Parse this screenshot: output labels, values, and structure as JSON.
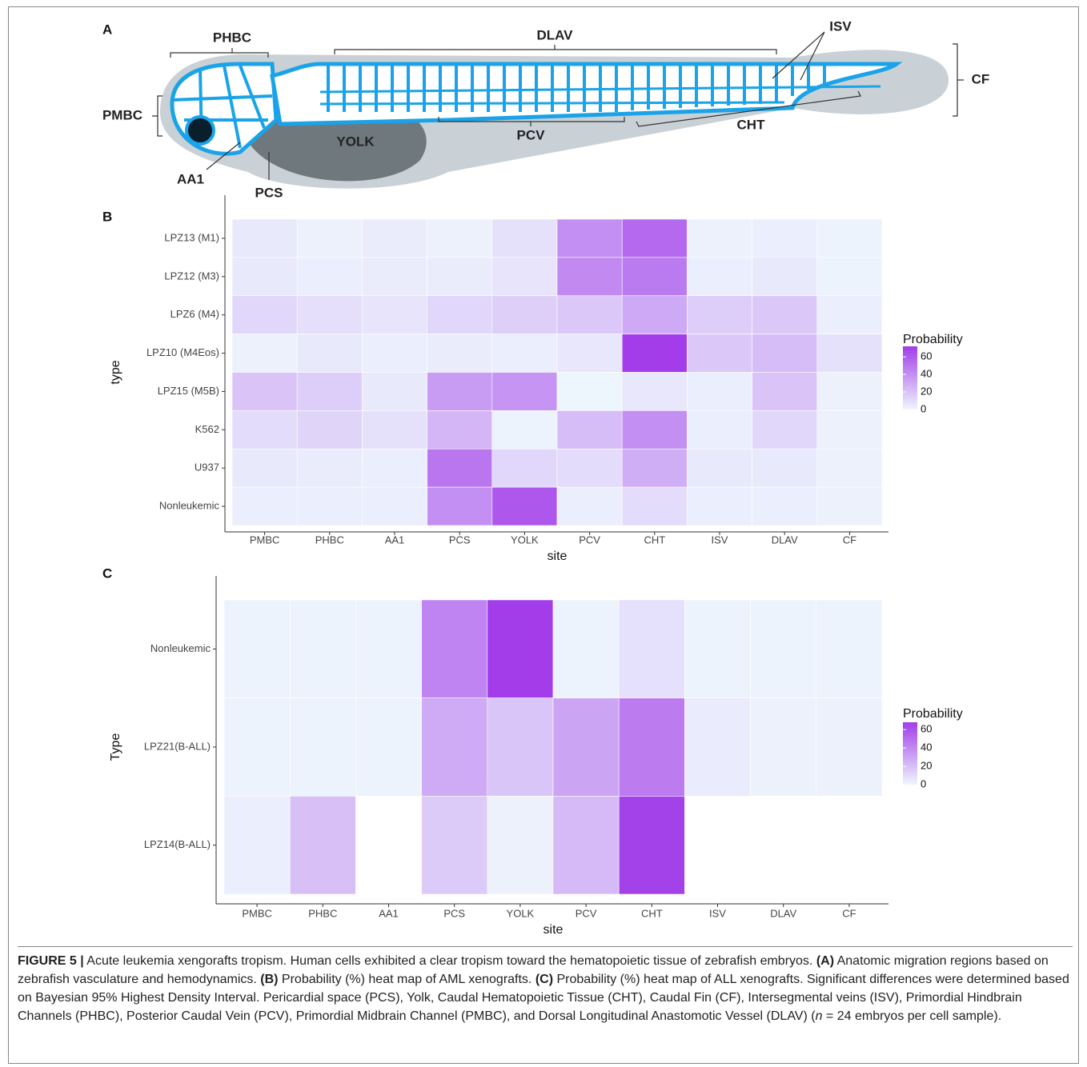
{
  "panels": [
    "A",
    "B",
    "C"
  ],
  "diagram": {
    "labels": [
      "PHBC",
      "DLAV",
      "ISV",
      "CF",
      "PMBC",
      "YOLK",
      "PCV",
      "CHT",
      "AA1",
      "PCS"
    ]
  },
  "chart_data": [
    {
      "type": "heatmap",
      "xlabel": "site",
      "ylabel": "type",
      "legend_title": "Probability",
      "x_categories": [
        "PMBC",
        "PHBC",
        "AA1",
        "PCS",
        "YOLK",
        "PCV",
        "CHT",
        "ISV",
        "DLAV",
        "CF"
      ],
      "y_categories": [
        "LPZ13 (M1)",
        "LPZ12 (M3)",
        "LPZ6 (M4)",
        "LPZ10 (M4Eos)",
        "LPZ15 (M5B)",
        "K562",
        "U937",
        "Nonleukemic"
      ],
      "values": [
        [
          5,
          2,
          4,
          2,
          8,
          40,
          55,
          2,
          3,
          1
        ],
        [
          5,
          3,
          4,
          4,
          7,
          42,
          48,
          3,
          5,
          1
        ],
        [
          12,
          9,
          7,
          12,
          15,
          18,
          30,
          16,
          18,
          3
        ],
        [
          2,
          5,
          3,
          4,
          3,
          6,
          72,
          18,
          22,
          8
        ],
        [
          20,
          16,
          5,
          35,
          38,
          0,
          6,
          3,
          20,
          2
        ],
        [
          10,
          13,
          8,
          25,
          1,
          22,
          40,
          3,
          12,
          2
        ],
        [
          5,
          4,
          3,
          50,
          12,
          10,
          28,
          5,
          5,
          2
        ],
        [
          3,
          3,
          3,
          40,
          62,
          3,
          10,
          3,
          3,
          2
        ]
      ],
      "colorlim": [
        0,
        72
      ],
      "colorticks": [
        0,
        20,
        40,
        60
      ],
      "color_low": "#eef6fd",
      "color_high": "#a23de9"
    },
    {
      "type": "heatmap",
      "xlabel": "site",
      "ylabel": "Type",
      "legend_title": "Probability",
      "x_categories": [
        "PMBC",
        "PHBC",
        "AA1",
        "PCS",
        "YOLK",
        "PCV",
        "CHT",
        "ISV",
        "DLAV",
        "CF"
      ],
      "y_categories": [
        "Nonleukemic",
        "LPZ21(B-ALL)",
        "LPZ14(B-ALL)"
      ],
      "values": [
        [
          1,
          1,
          1,
          42,
          68,
          1,
          8,
          1,
          1,
          1
        ],
        [
          1,
          1,
          1,
          28,
          18,
          30,
          45,
          4,
          2,
          2
        ],
        [
          3,
          20,
          null,
          16,
          2,
          22,
          66,
          null,
          null,
          null
        ]
      ],
      "colorlim": [
        0,
        68
      ],
      "colorticks": [
        0,
        20,
        40,
        60
      ],
      "color_low": "#eef6fd",
      "color_high": "#a23de9"
    }
  ],
  "caption": [
    "FIGURE 5 |",
    " Acute leukemia xengorafts tropism. Human cells exhibited a clear tropism toward the hematopoietic tissue of zebrafish embryos. ",
    "(A)",
    " Anatomic migration regions based on zebrafish vasculature and hemodynamics. ",
    "(B)",
    " Probability (%) heat map of AML xenografts. ",
    "(C)",
    " Probability (%) heat map of ALL xenografts. Significant differences were determined based on Bayesian 95% Highest Density Interval. Pericardial space (PCS), Yolk, Caudal Hematopoietic Tissue (CHT), Caudal Fin (CF), Intersegmental veins (ISV), Primordial Hindbrain Channels (PHBC), Posterior Caudal Vein (PCV), Primordial Midbrain Channel (PMBC), and Dorsal Longitudinal Anastomotic Vessel (DLAV) (",
    "n",
    " = 24 embryos per cell sample)."
  ]
}
